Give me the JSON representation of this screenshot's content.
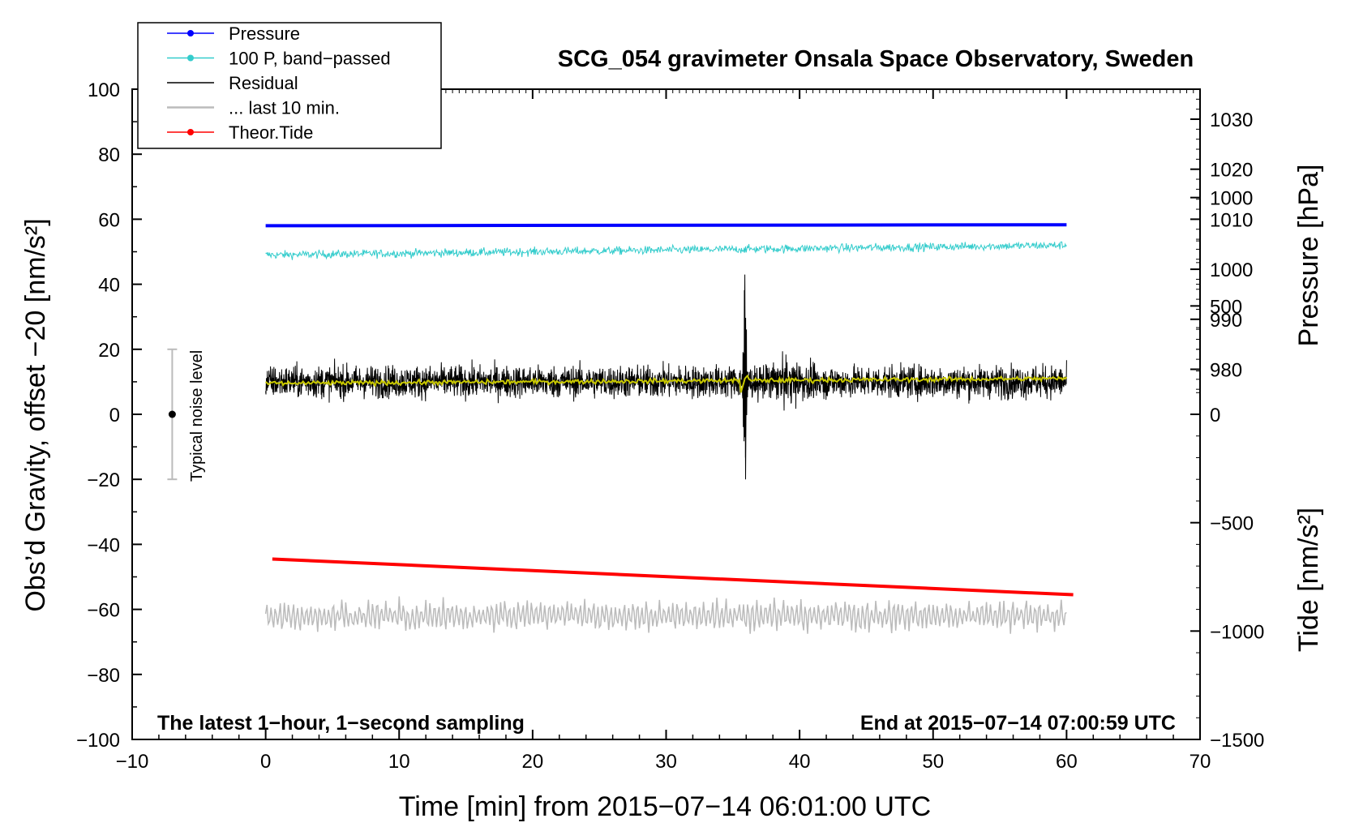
{
  "chart_data": {
    "type": "line",
    "title": "SCG_054 gravimeter Onsala Space Observatory, Sweden",
    "xlabel": "Time [min] from 2015−07−14 06:01:00 UTC",
    "ylabel_left": "Obs’d Gravity, offset −20 [nm/s²]",
    "ylabel_right_top": "Pressure [hPa]",
    "ylabel_right_bottom": "Tide [nm/s²]",
    "xlim": [
      -10,
      70
    ],
    "ylim": [
      -100,
      100
    ],
    "x_ticks": [
      "−10",
      "0",
      "10",
      "20",
      "30",
      "40",
      "50",
      "60",
      "70"
    ],
    "x_tick_values": [
      -10,
      0,
      10,
      20,
      30,
      40,
      50,
      60,
      70
    ],
    "y_ticks": [
      "−100",
      "−80",
      "−60",
      "−40",
      "−20",
      "0",
      "20",
      "40",
      "60",
      "80",
      "100"
    ],
    "y_tick_values": [
      -100,
      -80,
      -60,
      -40,
      -20,
      0,
      20,
      40,
      60,
      80,
      100
    ],
    "pressure_axis": {
      "ticks": [
        "980",
        "990",
        "1000",
        "1010",
        "1020",
        "1030"
      ],
      "values": [
        980,
        990,
        1000,
        1010,
        1020,
        1030
      ],
      "mapping": {
        "value_at_y60": 1010,
        "hpa_per_left_unit": 0.65
      }
    },
    "tide_axis": {
      "ticks": [
        "−1500",
        "−1000",
        "−500",
        "0",
        "500",
        "1000"
      ],
      "values": [
        -1500,
        -1000,
        -500,
        0,
        500,
        1000
      ],
      "mapping": {
        "value_at_ymin": -1500,
        "nms2_per_left_unit": 15
      }
    },
    "legend": [
      {
        "label": "Pressure",
        "color": "#0000ff",
        "marker": true
      },
      {
        "label": "100 P, band−passed",
        "color": "#33cccc",
        "marker": true
      },
      {
        "label": "Residual",
        "color": "#000000",
        "marker": false
      },
      {
        "label": "... last 10 min.",
        "color": "#bbbbbb",
        "marker": false
      },
      {
        "label": "Theor.Tide",
        "color": "#ff0000",
        "marker": true
      }
    ],
    "series": [
      {
        "name": "Pressure",
        "color": "#0000ff",
        "x_range": [
          0,
          60
        ],
        "start": 58,
        "end": 58.3
      },
      {
        "name": "100 P, band-passed",
        "color": "#33cccc",
        "x_range": [
          0,
          60
        ],
        "start": 49,
        "end": 52,
        "noise_amplitude": 1.5
      },
      {
        "name": "Residual",
        "color": "#000000",
        "x_range": [
          0,
          60
        ],
        "mean": 10,
        "noise_amplitude": 3.5,
        "event_time": 35.9,
        "event_max": 43,
        "event_min": -20
      },
      {
        "name": "Residual smoothed",
        "color": "#c8c800",
        "x_range": [
          0,
          60
        ],
        "start": 9.5,
        "end": 11
      },
      {
        "name": "... last 10 min.",
        "color": "#bbbbbb",
        "x_range": [
          0,
          60
        ],
        "mean": -62,
        "noise_amplitude": 3.5
      },
      {
        "name": "Theor.Tide",
        "color": "#ff0000",
        "x_range": [
          0.5,
          60.5
        ],
        "start": -44.5,
        "end": -55.5
      }
    ],
    "noise_bar": {
      "label": "Typical noise level",
      "x": -7,
      "center": 0,
      "low": -20,
      "high": 20
    },
    "annotations": {
      "left": "The latest 1−hour, 1−second sampling",
      "right": "End at 2015−07−14 07:00:59 UTC"
    }
  }
}
